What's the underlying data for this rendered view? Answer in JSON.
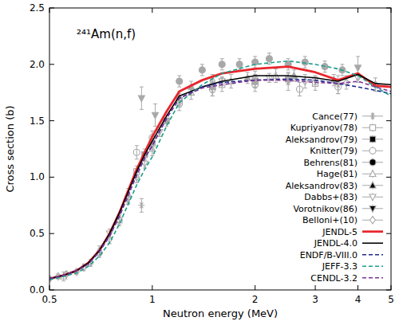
{
  "chart_data": {
    "type": "scatter",
    "title": "²⁴¹Am(n,f)",
    "x_label": "Neutron energy (MeV)",
    "y_label": "Cross section (b)",
    "log": "x",
    "grid": false,
    "legend": "lower right",
    "xlim": [
      0.5,
      5
    ],
    "ylim": [
      0,
      2.5
    ],
    "xticks": [
      0.5,
      1,
      2,
      3,
      4,
      5
    ],
    "yticks": [
      {
        "value": 0,
        "label": "0.0"
      },
      {
        "value": 0.5,
        "label": "0.5"
      },
      {
        "value": 1,
        "label": "1.0"
      },
      {
        "value": 1.5,
        "label": "1.5"
      },
      {
        "value": 2,
        "label": "2.0"
      },
      {
        "value": 2.5,
        "label": "2.5"
      }
    ],
    "series": [
      {
        "name": "Cance(77)",
        "type": "scatter",
        "marker": "asterisk",
        "color": "#a8a8a8",
        "x": [
          0.93,
          1.5,
          2.5,
          3.5
        ],
        "values": [
          0.75,
          1.8,
          1.85,
          1.82
        ],
        "errors": [
          0.06,
          0.08,
          0.08,
          0.08
        ]
      },
      {
        "name": "Kupriyanov(78)",
        "type": "scatter",
        "marker": "open-square",
        "color": "#a8a8a8",
        "x": [
          0.8,
          0.9,
          1.0,
          1.2,
          1.6,
          2.0,
          3.0
        ],
        "values": [
          0.62,
          1.05,
          1.3,
          1.68,
          1.82,
          1.85,
          1.83
        ],
        "errors": [
          0.05,
          0.05,
          0.06,
          0.06,
          0.06,
          0.06,
          0.06
        ]
      },
      {
        "name": "Aleksandrov(79)",
        "type": "scatter",
        "marker": "square",
        "color": "#a8a8a8",
        "x": [
          0.95,
          1.1,
          1.5,
          2.0,
          2.5
        ],
        "values": [
          1.2,
          1.5,
          1.8,
          1.85,
          1.87
        ],
        "errors": [
          0.05,
          0.05,
          0.05,
          0.05,
          0.05
        ]
      },
      {
        "name": "Knitter(79)",
        "type": "scatter",
        "marker": "open-circle",
        "color": "#a8a8a8",
        "x": [
          0.9,
          1.0,
          1.2,
          1.5,
          2.0,
          2.7,
          3.5
        ],
        "values": [
          1.22,
          1.35,
          1.65,
          1.78,
          1.82,
          1.78,
          1.8
        ],
        "errors": [
          0.06,
          0.06,
          0.06,
          0.06,
          0.06,
          0.06,
          0.06
        ]
      },
      {
        "name": "Behrens(81)",
        "type": "scatter",
        "marker": "circle",
        "color": "#a8a8a8",
        "x": [
          1.2,
          1.4,
          1.6,
          1.8,
          2.0,
          2.2,
          2.5,
          2.8,
          3.2,
          3.6
        ],
        "values": [
          1.85,
          1.95,
          2.0,
          2.0,
          2.02,
          2.05,
          2.0,
          2.02,
          1.98,
          1.95
        ],
        "errors": [
          0.05,
          0.05,
          0.05,
          0.05,
          0.05,
          0.05,
          0.05,
          0.05,
          0.05,
          0.05
        ]
      },
      {
        "name": "Hage(81)",
        "type": "scatter",
        "marker": "open-triangle",
        "color": "#a8a8a8",
        "x": [
          0.55,
          0.7,
          0.85,
          1.0,
          1.3,
          1.7,
          2.3
        ],
        "values": [
          0.12,
          0.35,
          0.85,
          1.25,
          1.75,
          1.85,
          1.9
        ],
        "errors": [
          0.04,
          0.04,
          0.05,
          0.06,
          0.06,
          0.06,
          0.06
        ]
      },
      {
        "name": "Aleksandrov(83)",
        "type": "scatter",
        "marker": "triangle",
        "color": "#a8a8a8",
        "x": [
          1.3,
          1.9,
          2.6,
          3.4
        ],
        "values": [
          1.8,
          1.88,
          1.9,
          1.86
        ],
        "errors": [
          0.05,
          0.05,
          0.05,
          0.05
        ]
      },
      {
        "name": "Dabbs+(83)",
        "type": "scatter",
        "marker": "open-triangle-down",
        "color": "#a8a8a8",
        "x": [
          0.75,
          0.85,
          0.95,
          1.05,
          1.2,
          1.6,
          2.2,
          3.0,
          4.0
        ],
        "values": [
          0.5,
          0.8,
          1.12,
          1.4,
          1.68,
          1.85,
          1.88,
          1.86,
          1.88
        ],
        "errors": [
          0.04,
          0.04,
          0.04,
          0.04,
          0.04,
          0.04,
          0.04,
          0.04,
          0.04
        ]
      },
      {
        "name": "Vorotnikov(86)",
        "type": "scatter",
        "marker": "triangle-down",
        "color": "#a8a8a8",
        "x": [
          0.93,
          1.02,
          4.0
        ],
        "values": [
          1.7,
          1.55,
          1.97
        ],
        "errors": [
          0.1,
          0.1,
          0.1
        ]
      },
      {
        "name": "Belloni+(10)",
        "type": "scatter",
        "marker": "open-diamond",
        "color": "#a8a8a8",
        "x": [
          0.5,
          0.53,
          0.56,
          0.6,
          0.63,
          0.66,
          0.7,
          0.75,
          0.8,
          0.85,
          0.9,
          1.0,
          1.2,
          1.5,
          2.0,
          2.8,
          3.7,
          4.5
        ],
        "values": [
          0.1,
          0.12,
          0.14,
          0.16,
          0.2,
          0.24,
          0.32,
          0.45,
          0.62,
          0.82,
          1.0,
          1.3,
          1.7,
          1.85,
          1.88,
          1.85,
          1.84,
          1.82
        ],
        "errors": [
          0.02,
          0.02,
          0.02,
          0.02,
          0.03,
          0.03,
          0.03,
          0.04,
          0.04,
          0.05,
          0.05,
          0.06,
          0.06,
          0.06,
          0.06,
          0.06,
          0.06,
          0.06
        ]
      },
      {
        "name": "JENDL-5",
        "type": "line",
        "line_style": "solid",
        "color": "#e8262c",
        "x": [
          0.5,
          0.55,
          0.6,
          0.65,
          0.7,
          0.75,
          0.8,
          0.85,
          0.9,
          0.95,
          1.0,
          1.1,
          1.2,
          1.4,
          1.6,
          2.0,
          2.5,
          3.0,
          3.5,
          4.0,
          4.5,
          5.0
        ],
        "values": [
          0.1,
          0.13,
          0.17,
          0.24,
          0.35,
          0.5,
          0.68,
          0.88,
          1.07,
          1.22,
          1.36,
          1.58,
          1.76,
          1.86,
          1.92,
          1.96,
          1.98,
          1.93,
          1.86,
          1.92,
          1.81,
          1.8
        ]
      },
      {
        "name": "JENDL-4.0",
        "type": "line",
        "line_style": "solid",
        "color": "#000000",
        "x": [
          0.5,
          0.55,
          0.6,
          0.65,
          0.7,
          0.75,
          0.8,
          0.85,
          0.9,
          0.95,
          1.0,
          1.1,
          1.2,
          1.4,
          1.6,
          2.0,
          2.5,
          3.0,
          3.5,
          4.0,
          4.5,
          5.0
        ],
        "values": [
          0.1,
          0.13,
          0.17,
          0.24,
          0.35,
          0.5,
          0.68,
          0.87,
          1.05,
          1.2,
          1.32,
          1.54,
          1.72,
          1.8,
          1.85,
          1.9,
          1.9,
          1.88,
          1.85,
          1.91,
          1.83,
          1.82
        ]
      },
      {
        "name": "ENDF/B-VIII.0",
        "type": "line",
        "line_style": "dashed",
        "color": "#1f2a8c",
        "x": [
          0.5,
          0.55,
          0.6,
          0.65,
          0.7,
          0.75,
          0.8,
          0.85,
          0.9,
          0.95,
          1.0,
          1.1,
          1.2,
          1.4,
          1.6,
          2.0,
          2.5,
          3.0,
          3.5,
          4.0,
          4.5,
          5.0
        ],
        "values": [
          0.1,
          0.13,
          0.17,
          0.23,
          0.34,
          0.48,
          0.65,
          0.84,
          1.02,
          1.17,
          1.28,
          1.52,
          1.7,
          1.8,
          1.84,
          1.86,
          1.87,
          1.86,
          1.83,
          1.8,
          1.77,
          1.74
        ]
      },
      {
        "name": "JEFF-3.3",
        "type": "line",
        "line_style": "dashed",
        "color": "#1aa08a",
        "x": [
          0.5,
          0.55,
          0.6,
          0.65,
          0.7,
          0.75,
          0.8,
          0.85,
          0.9,
          0.95,
          1.0,
          1.1,
          1.2,
          1.4,
          1.6,
          2.0,
          2.5,
          3.0,
          3.5,
          4.0,
          4.5,
          5.0
        ],
        "values": [
          0.09,
          0.12,
          0.15,
          0.21,
          0.3,
          0.42,
          0.58,
          0.76,
          0.93,
          1.07,
          1.18,
          1.45,
          1.66,
          1.82,
          1.92,
          2.0,
          2.03,
          2.0,
          1.96,
          1.9,
          1.8,
          1.72
        ]
      },
      {
        "name": "CENDL-3.2",
        "type": "line",
        "line_style": "dashed",
        "color": "#7b3294",
        "x": [
          0.5,
          0.55,
          0.6,
          0.65,
          0.7,
          0.75,
          0.8,
          0.85,
          0.9,
          0.95,
          1.0,
          1.1,
          1.2,
          1.4,
          1.6,
          2.0,
          2.5,
          3.0,
          3.5,
          4.0,
          4.5,
          5.0
        ],
        "values": [
          0.1,
          0.13,
          0.17,
          0.23,
          0.34,
          0.48,
          0.65,
          0.84,
          1.02,
          1.17,
          1.28,
          1.52,
          1.7,
          1.79,
          1.82,
          1.86,
          1.86,
          1.84,
          1.83,
          1.85,
          1.8,
          1.76
        ]
      }
    ]
  }
}
